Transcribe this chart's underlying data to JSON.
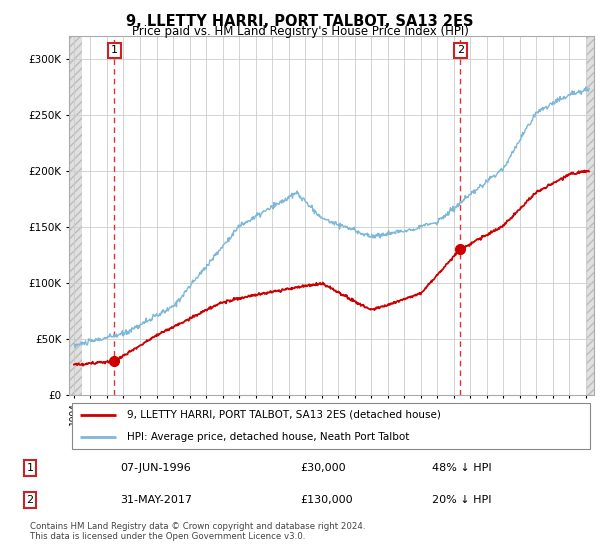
{
  "title": "9, LLETTY HARRI, PORT TALBOT, SA13 2ES",
  "subtitle": "Price paid vs. HM Land Registry's House Price Index (HPI)",
  "legend_line1": "9, LLETTY HARRI, PORT TALBOT, SA13 2ES (detached house)",
  "legend_line2": "HPI: Average price, detached house, Neath Port Talbot",
  "annotation1_date": "07-JUN-1996",
  "annotation1_price": "£30,000",
  "annotation1_hpi": "48% ↓ HPI",
  "annotation2_date": "31-MAY-2017",
  "annotation2_price": "£130,000",
  "annotation2_hpi": "20% ↓ HPI",
  "footer": "Contains HM Land Registry data © Crown copyright and database right 2024.\nThis data is licensed under the Open Government Licence v3.0.",
  "sale1_year": 1996.44,
  "sale1_value": 30000,
  "sale2_year": 2017.41,
  "sale2_value": 130000,
  "hpi_color": "#7db8d8",
  "price_color": "#cc0000",
  "dashed_color": "#dd3333",
  "ylim_max": 320000,
  "ylim_min": 0,
  "xmin": 1993.7,
  "xmax": 2025.5
}
